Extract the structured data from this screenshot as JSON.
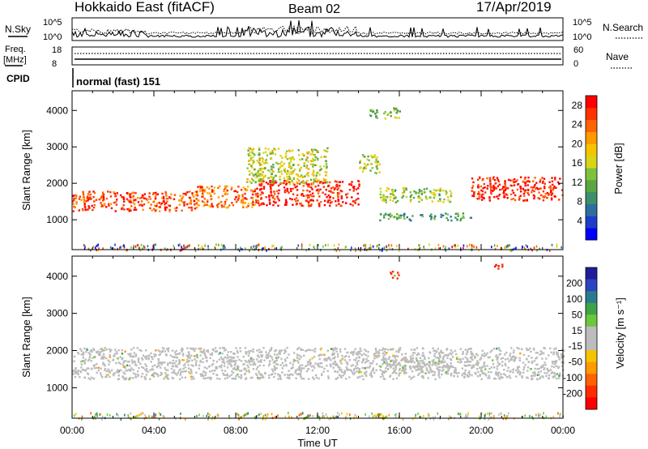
{
  "header": {
    "station": "Hokkaido East (fitACF)",
    "beam": "Beam 02",
    "date": "17/Apr/2019"
  },
  "strip": {
    "nsky_label": "N.Sky",
    "nsearch_label": "N.Search",
    "nsky_ticks": [
      "10^5",
      "10^0"
    ],
    "nsearch_ticks": [
      "10^5",
      "10^0"
    ],
    "freq_label_top": "Freq.",
    "freq_label_unit": "[MHz]",
    "freq_ticks": [
      "18",
      "8"
    ],
    "nave_label": "Nave",
    "nave_ticks": [
      "60",
      "0"
    ],
    "cpid_label": "CPID",
    "cpid_value": "normal (fast) 151"
  },
  "chart_data": [
    {
      "type": "heatmap",
      "panel": "power",
      "ylabel": "Slant Range [km]",
      "xlabel": "",
      "x_ticks": [
        "00:00",
        "04:00",
        "08:00",
        "12:00",
        "16:00",
        "20:00",
        "00:00"
      ],
      "x_range_hours": [
        0,
        24
      ],
      "y_ticks": [
        1000,
        2000,
        3000,
        4000
      ],
      "y_range_km": [
        180,
        4540
      ],
      "colorbar": {
        "label": "Power [dB]",
        "ticks": [
          4,
          8,
          12,
          16,
          20,
          24,
          28
        ],
        "range": [
          0,
          30
        ],
        "colors": [
          "#0000ff",
          "#1c3ec8",
          "#2d6e9e",
          "#3b8f6a",
          "#5aa640",
          "#7cc23e",
          "#d6d617",
          "#f5c400",
          "#ff9a00",
          "#ff6400",
          "#ff3200",
          "#ff0000"
        ]
      },
      "echo_regions": [
        {
          "t": [
            0.0,
            6.0
          ],
          "r": [
            1250,
            1800
          ],
          "level": 26,
          "desc": "main band"
        },
        {
          "t": [
            6.0,
            9.0
          ],
          "r": [
            1350,
            1950
          ],
          "level": 24
        },
        {
          "t": [
            9.0,
            14.0
          ],
          "r": [
            1400,
            2100
          ],
          "level": 28
        },
        {
          "t": [
            8.5,
            12.5
          ],
          "r": [
            2000,
            3000
          ],
          "level": 16
        },
        {
          "t": [
            14.0,
            15.0
          ],
          "r": [
            2300,
            2800
          ],
          "level": 14
        },
        {
          "t": [
            15.0,
            18.5
          ],
          "r": [
            1500,
            1900
          ],
          "level": 14
        },
        {
          "t": [
            15.0,
            19.5
          ],
          "r": [
            1000,
            1200
          ],
          "level": 10
        },
        {
          "t": [
            19.5,
            24.0
          ],
          "r": [
            1550,
            2200
          ],
          "level": 28
        },
        {
          "t": [
            14.5,
            16.0
          ],
          "r": [
            3800,
            4100
          ],
          "level": 12
        }
      ]
    },
    {
      "type": "heatmap",
      "panel": "velocity",
      "ylabel": "Slant Range [km]",
      "xlabel": "Time UT",
      "x_ticks": [
        "00:00",
        "04:00",
        "08:00",
        "12:00",
        "16:00",
        "20:00",
        "00:00"
      ],
      "x_range_hours": [
        0,
        24
      ],
      "y_ticks": [
        1000,
        2000,
        3000,
        4000
      ],
      "y_range_km": [
        180,
        4540
      ],
      "colorbar": {
        "label": "Velocity [m s⁻¹]",
        "ticks": [
          200,
          100,
          50,
          15,
          -15,
          -50,
          -100,
          -200
        ],
        "range": [
          -250,
          250
        ],
        "colors": [
          "#1e1e9a",
          "#2b45c0",
          "#2a7c8c",
          "#3fa34a",
          "#6dc73c",
          "#bcbcbc",
          "#bcbcbc",
          "#f5c400",
          "#ff9a00",
          "#ff6000",
          "#ff2c00",
          "#ff0000"
        ]
      },
      "echo_regions": [
        {
          "t": [
            0.0,
            24.0
          ],
          "r": [
            1250,
            2100
          ],
          "velocity": 0,
          "desc": "ground scatter (grey)"
        },
        {
          "t": [
            15.0,
            18.5
          ],
          "r": [
            1400,
            1800
          ],
          "velocity": 30
        },
        {
          "t": [
            15.5,
            16.0
          ],
          "r": [
            3950,
            4150
          ],
          "velocity": -200
        },
        {
          "t": [
            20.5,
            21.0
          ],
          "r": [
            4200,
            4350
          ],
          "velocity": -200
        }
      ]
    }
  ]
}
